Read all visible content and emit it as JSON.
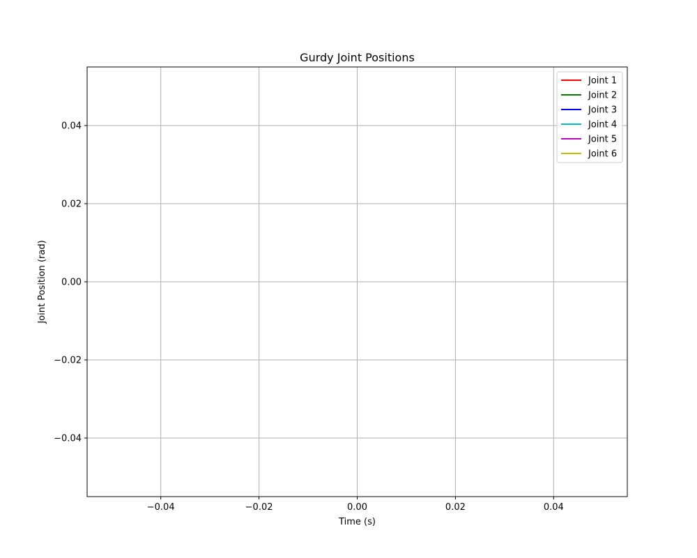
{
  "chart_data": {
    "type": "line",
    "title": "Gurdy Joint Positions",
    "xlabel": "Time (s)",
    "ylabel": "Joint Position (rad)",
    "xlim": [
      -0.055,
      0.055
    ],
    "ylim": [
      -0.055,
      0.055
    ],
    "x_ticks": [
      -0.04,
      -0.02,
      0.0,
      0.02,
      0.04
    ],
    "x_tick_labels": [
      "−0.04",
      "−0.02",
      "0.00",
      "0.02",
      "0.04"
    ],
    "y_ticks": [
      -0.04,
      -0.02,
      0.0,
      0.02,
      0.04
    ],
    "y_tick_labels": [
      "−0.04",
      "−0.02",
      "0.00",
      "0.02",
      "0.04"
    ],
    "grid": true,
    "legend_position": "top-right",
    "series": [
      {
        "name": "Joint 1",
        "color": "#ff0000",
        "x": [],
        "values": []
      },
      {
        "name": "Joint 2",
        "color": "#008000",
        "x": [],
        "values": []
      },
      {
        "name": "Joint 3",
        "color": "#0000ff",
        "x": [],
        "values": []
      },
      {
        "name": "Joint 4",
        "color": "#00bfbf",
        "x": [],
        "values": []
      },
      {
        "name": "Joint 5",
        "color": "#bf00bf",
        "x": [],
        "values": []
      },
      {
        "name": "Joint 6",
        "color": "#bfbf00",
        "x": [],
        "values": []
      }
    ]
  }
}
